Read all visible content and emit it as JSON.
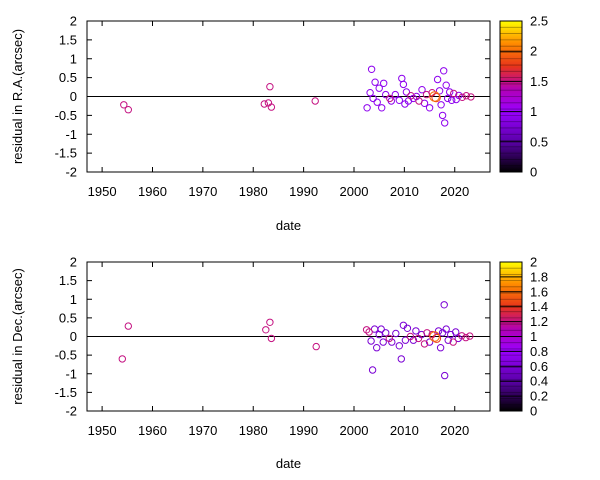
{
  "chart_data": [
    {
      "type": "scatter",
      "xlabel": "date",
      "ylabel": "residual in R.A.(arcsec)",
      "xlim": [
        1947,
        2027
      ],
      "ylim": [
        -2,
        2
      ],
      "xticks": [
        "1950",
        "1960",
        "1970",
        "1980",
        "1990",
        "2000",
        "2010",
        "2020"
      ],
      "yticks": [
        "-2",
        "-1.5",
        "-1",
        "-0.5",
        "0",
        "0.5",
        "1",
        "1.5",
        "2"
      ],
      "zero_line": true,
      "colorbar": {
        "min": 0,
        "max": 2.5,
        "ticks": [
          "0",
          "0.5",
          "1",
          "1.5",
          "2",
          "2.5"
        ]
      },
      "points": [
        {
          "x": 1954.3,
          "y": -0.22,
          "c": 1.5
        },
        {
          "x": 1955.2,
          "y": -0.35,
          "c": 1.5
        },
        {
          "x": 1982.2,
          "y": -0.2,
          "c": 1.5
        },
        {
          "x": 1983.0,
          "y": -0.17,
          "c": 1.5
        },
        {
          "x": 1983.3,
          "y": 0.26,
          "c": 1.5
        },
        {
          "x": 1983.6,
          "y": -0.28,
          "c": 1.5
        },
        {
          "x": 1992.3,
          "y": -0.12,
          "c": 1.5
        },
        {
          "x": 2002.6,
          "y": -0.3,
          "c": 0.9
        },
        {
          "x": 2003.2,
          "y": 0.1,
          "c": 0.9
        },
        {
          "x": 2003.5,
          "y": 0.72,
          "c": 0.9
        },
        {
          "x": 2003.8,
          "y": -0.05,
          "c": 0.9
        },
        {
          "x": 2004.2,
          "y": 0.38,
          "c": 0.9
        },
        {
          "x": 2004.6,
          "y": -0.15,
          "c": 0.9
        },
        {
          "x": 2005.0,
          "y": 0.22,
          "c": 0.9
        },
        {
          "x": 2005.5,
          "y": -0.3,
          "c": 0.9
        },
        {
          "x": 2005.9,
          "y": 0.35,
          "c": 0.9
        },
        {
          "x": 2006.3,
          "y": 0.05,
          "c": 0.9
        },
        {
          "x": 2007.1,
          "y": -0.05,
          "c": 1.5
        },
        {
          "x": 2007.4,
          "y": -0.12,
          "c": 0.9
        },
        {
          "x": 2008.2,
          "y": 0.05,
          "c": 0.9
        },
        {
          "x": 2009.0,
          "y": -0.1,
          "c": 0.9
        },
        {
          "x": 2009.5,
          "y": 0.48,
          "c": 0.9
        },
        {
          "x": 2009.8,
          "y": 0.32,
          "c": 0.9
        },
        {
          "x": 2010.1,
          "y": -0.2,
          "c": 0.9
        },
        {
          "x": 2010.4,
          "y": 0.12,
          "c": 0.9
        },
        {
          "x": 2010.8,
          "y": -0.12,
          "c": 0.9
        },
        {
          "x": 2011.3,
          "y": 0.02,
          "c": 1.5
        },
        {
          "x": 2011.8,
          "y": -0.05,
          "c": 0.9
        },
        {
          "x": 2012.4,
          "y": 0.0,
          "c": 0.9
        },
        {
          "x": 2012.9,
          "y": -0.12,
          "c": 1.5
        },
        {
          "x": 2013.5,
          "y": 0.18,
          "c": 0.9
        },
        {
          "x": 2014.0,
          "y": -0.18,
          "c": 0.9
        },
        {
          "x": 2014.4,
          "y": 0.05,
          "c": 1.5
        },
        {
          "x": 2015.0,
          "y": -0.3,
          "c": 0.9
        },
        {
          "x": 2015.5,
          "y": 0.1,
          "c": 1.5
        },
        {
          "x": 2016.0,
          "y": 0.0,
          "c": 2.0
        },
        {
          "x": 2016.3,
          "y": -0.03,
          "c": 1.8
        },
        {
          "x": 2016.6,
          "y": 0.45,
          "c": 0.9
        },
        {
          "x": 2017.0,
          "y": 0.15,
          "c": 0.9
        },
        {
          "x": 2017.3,
          "y": -0.22,
          "c": 0.9
        },
        {
          "x": 2017.6,
          "y": -0.5,
          "c": 0.9
        },
        {
          "x": 2017.8,
          "y": 0.68,
          "c": 0.9
        },
        {
          "x": 2018.0,
          "y": -0.7,
          "c": 0.9
        },
        {
          "x": 2018.3,
          "y": 0.3,
          "c": 0.9
        },
        {
          "x": 2018.6,
          "y": -0.05,
          "c": 0.9
        },
        {
          "x": 2019.0,
          "y": 0.12,
          "c": 0.9
        },
        {
          "x": 2019.4,
          "y": -0.1,
          "c": 0.9
        },
        {
          "x": 2019.8,
          "y": 0.08,
          "c": 1.5
        },
        {
          "x": 2020.3,
          "y": -0.08,
          "c": 0.9
        },
        {
          "x": 2020.8,
          "y": 0.03,
          "c": 0.9
        },
        {
          "x": 2021.5,
          "y": -0.02,
          "c": 1.5
        },
        {
          "x": 2022.3,
          "y": 0.02,
          "c": 1.5
        },
        {
          "x": 2023.2,
          "y": -0.01,
          "c": 1.5
        }
      ]
    },
    {
      "type": "scatter",
      "xlabel": "date",
      "ylabel": "residual in Dec.(arcsec)",
      "xlim": [
        1947,
        2027
      ],
      "ylim": [
        -2,
        2
      ],
      "xticks": [
        "1950",
        "1960",
        "1970",
        "1980",
        "1990",
        "2000",
        "2010",
        "2020"
      ],
      "yticks": [
        "-2",
        "-1.5",
        "-1",
        "-0.5",
        "0",
        "0.5",
        "1",
        "1.5",
        "2"
      ],
      "zero_line": true,
      "colorbar": {
        "min": 0,
        "max": 2,
        "ticks": [
          "0",
          "0.2",
          "0.4",
          "0.6",
          "0.8",
          "1",
          "1.2",
          "1.4",
          "1.6",
          "1.8",
          "2"
        ]
      },
      "points": [
        {
          "x": 1954.0,
          "y": -0.6,
          "c": 1.2
        },
        {
          "x": 1955.2,
          "y": 0.28,
          "c": 1.2
        },
        {
          "x": 1982.5,
          "y": 0.18,
          "c": 1.2
        },
        {
          "x": 1983.3,
          "y": 0.38,
          "c": 1.2
        },
        {
          "x": 1983.6,
          "y": -0.05,
          "c": 1.2
        },
        {
          "x": 1992.5,
          "y": -0.27,
          "c": 1.2
        },
        {
          "x": 2002.5,
          "y": 0.18,
          "c": 1.2
        },
        {
          "x": 2003.0,
          "y": 0.12,
          "c": 1.2
        },
        {
          "x": 2003.4,
          "y": -0.12,
          "c": 0.6
        },
        {
          "x": 2003.7,
          "y": -0.9,
          "c": 0.6
        },
        {
          "x": 2004.1,
          "y": 0.2,
          "c": 0.6
        },
        {
          "x": 2004.5,
          "y": -0.3,
          "c": 0.6
        },
        {
          "x": 2005.0,
          "y": 0.05,
          "c": 0.6
        },
        {
          "x": 2005.4,
          "y": 0.2,
          "c": 0.6
        },
        {
          "x": 2005.8,
          "y": -0.15,
          "c": 0.6
        },
        {
          "x": 2006.3,
          "y": 0.1,
          "c": 0.6
        },
        {
          "x": 2007.0,
          "y": -0.05,
          "c": 1.2
        },
        {
          "x": 2007.5,
          "y": -0.15,
          "c": 0.6
        },
        {
          "x": 2008.3,
          "y": 0.08,
          "c": 0.6
        },
        {
          "x": 2009.0,
          "y": -0.25,
          "c": 0.6
        },
        {
          "x": 2009.4,
          "y": -0.6,
          "c": 0.6
        },
        {
          "x": 2009.8,
          "y": 0.3,
          "c": 0.6
        },
        {
          "x": 2010.2,
          "y": -0.1,
          "c": 0.6
        },
        {
          "x": 2010.6,
          "y": 0.22,
          "c": 0.6
        },
        {
          "x": 2011.2,
          "y": 0.0,
          "c": 1.2
        },
        {
          "x": 2011.8,
          "y": -0.1,
          "c": 0.6
        },
        {
          "x": 2012.3,
          "y": 0.15,
          "c": 0.6
        },
        {
          "x": 2012.8,
          "y": -0.05,
          "c": 1.2
        },
        {
          "x": 2013.4,
          "y": 0.05,
          "c": 0.6
        },
        {
          "x": 2014.0,
          "y": -0.2,
          "c": 1.2
        },
        {
          "x": 2014.5,
          "y": 0.1,
          "c": 1.2
        },
        {
          "x": 2015.0,
          "y": -0.15,
          "c": 0.6
        },
        {
          "x": 2015.5,
          "y": 0.05,
          "c": 1.2
        },
        {
          "x": 2016.0,
          "y": 0.0,
          "c": 1.6
        },
        {
          "x": 2016.4,
          "y": -0.05,
          "c": 1.4
        },
        {
          "x": 2016.8,
          "y": 0.15,
          "c": 0.6
        },
        {
          "x": 2017.2,
          "y": -0.3,
          "c": 0.6
        },
        {
          "x": 2017.6,
          "y": 0.1,
          "c": 0.6
        },
        {
          "x": 2017.9,
          "y": 0.85,
          "c": 0.6
        },
        {
          "x": 2018.0,
          "y": -1.05,
          "c": 0.6
        },
        {
          "x": 2018.3,
          "y": 0.2,
          "c": 0.6
        },
        {
          "x": 2018.7,
          "y": -0.1,
          "c": 0.6
        },
        {
          "x": 2019.2,
          "y": 0.05,
          "c": 0.6
        },
        {
          "x": 2019.7,
          "y": -0.15,
          "c": 1.2
        },
        {
          "x": 2020.2,
          "y": 0.12,
          "c": 0.6
        },
        {
          "x": 2020.7,
          "y": -0.05,
          "c": 0.6
        },
        {
          "x": 2021.4,
          "y": 0.02,
          "c": 1.2
        },
        {
          "x": 2022.2,
          "y": -0.03,
          "c": 1.2
        },
        {
          "x": 2023.0,
          "y": 0.01,
          "c": 1.2
        }
      ]
    }
  ]
}
